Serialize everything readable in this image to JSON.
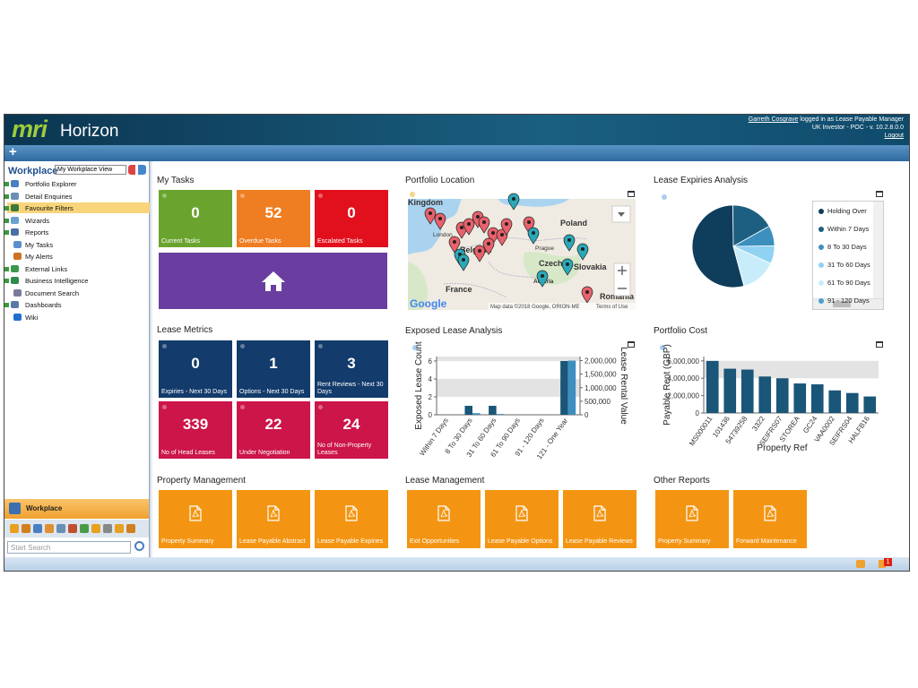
{
  "header": {
    "logo": "mri",
    "brand": "Horizon",
    "user": "Garreth Cosgrave",
    "role_text": "logged in as Lease Payable Manager",
    "environment": "UK Investor - POC - v. 10.2.8.0.0",
    "logout": "Logout"
  },
  "toolbar": {
    "add_button": "+"
  },
  "sidebar": {
    "title": "Workplace",
    "view": "My Workplace View",
    "items": [
      "Portfolio Explorer",
      "Detail Enquiries",
      "Favourite Filters",
      "Wizards",
      "Reports",
      "My Tasks",
      "My Alerts",
      "External Links",
      "Business Intelligence",
      "Document Search",
      "Dashboards",
      "Wiki"
    ],
    "selected": 2,
    "tab": "Workplace",
    "search_placeholder": "Start Search"
  },
  "my_tasks": {
    "title": "My Tasks",
    "tiles": [
      {
        "value": 0,
        "label": "Current Tasks",
        "color": "#6aa42f"
      },
      {
        "value": 52,
        "label": "Overdue Tasks",
        "color": "#ef7d22"
      },
      {
        "value": 0,
        "label": "Escalated Tasks",
        "color": "#e2101d"
      }
    ],
    "home_color": "#6a3ea0"
  },
  "lease_metrics": {
    "title": "Lease Metrics",
    "tiles": [
      {
        "value": 0,
        "label": "Expiries - Next 30 Days",
        "color": "#133b6b"
      },
      {
        "value": 1,
        "label": "Options - Next 30 Days",
        "color": "#133b6b"
      },
      {
        "value": 3,
        "label": "Rent Reviews - Next 30 Days",
        "color": "#133b6b"
      },
      {
        "value": 339,
        "label": "No of Head Leases",
        "color": "#cc1549"
      },
      {
        "value": 22,
        "label": "Under Negotiation",
        "color": "#cc1549"
      },
      {
        "value": 24,
        "label": "No of Non-Property Leases",
        "color": "#cc1549"
      }
    ]
  },
  "portfolio_location": {
    "title": "Portfolio Location",
    "labels": [
      "Kingdom",
      "London",
      "Poland",
      "Belgium",
      "Prague",
      "Czechia",
      "Slovakia",
      "Austria",
      "France",
      "Romania"
    ],
    "attribution": "Map data ©2018 Google, ORION-ME",
    "terms": "Terms of Use",
    "provider": "Google"
  },
  "report_groups": [
    {
      "title": "Property Management",
      "reports": [
        "Property Summary",
        "Lease Payable Abstract",
        "Lease Payable Expiries"
      ]
    },
    {
      "title": "Lease Management",
      "reports": [
        "Exit Opportunities",
        "Lease Payable Options",
        "Lease Payable Reviews"
      ]
    },
    {
      "title": "Other Reports",
      "reports": [
        "Property Summary",
        "Forward Maintenance"
      ]
    }
  ],
  "report_color": "#f39512",
  "status_bar": {
    "alert_count": 1
  },
  "chart_data": [
    {
      "type": "pie",
      "title": "Lease Expiries Analysis",
      "categories": [
        "Holding Over",
        "Within 7 Days",
        "8 To 30 Days",
        "31 To 60 Days",
        "61 To 90 Days",
        "91 - 120 Days"
      ],
      "values": [
        54,
        17,
        8,
        7,
        14,
        0
      ],
      "colors": [
        "#0f3d5c",
        "#1d5f80",
        "#3d8fbd",
        "#8fd2f2",
        "#c9ecfb",
        "#4a9fcf"
      ]
    },
    {
      "type": "bar",
      "title": "Exposed Lease Analysis",
      "categories": [
        "Within 7 Days",
        "8 To 30 Days",
        "31 To 60 Days",
        "61 To 90 Days",
        "91 - 120 Days",
        "121 - One Year"
      ],
      "ylabel": "Exposed Lease Count",
      "y2label": "Lease Rental Value",
      "series": [
        {
          "color": "#1a5677",
          "values": [
            0,
            1,
            1,
            0,
            0,
            6
          ]
        },
        {
          "color": "#3e8fbf",
          "values": [
            0,
            60000,
            30000,
            0,
            0,
            2000000
          ],
          "axis": "y2"
        }
      ],
      "ylim": [
        0,
        6.5
      ],
      "yticks": [
        0,
        2,
        4,
        6
      ],
      "y2lim": [
        0,
        2150000
      ],
      "y2ticks": [
        0,
        {
          "value": 500000,
          "label": "500,000"
        },
        {
          "value": 1000000,
          "label": "1,000,000"
        },
        {
          "value": 1500000,
          "label": "1,500,000"
        },
        {
          "value": 2000000,
          "label": "2,000,000"
        }
      ]
    },
    {
      "type": "bar",
      "title": "Portfolio Cost",
      "categories": [
        "MS000011",
        "101436",
        "54739258",
        "3322",
        "SEIFRS07",
        "STOREA",
        "GC24",
        "VAA0002",
        "SEIFRS04",
        "HALFB16"
      ],
      "values": [
        6000000,
        5100000,
        5000000,
        4200000,
        4000000,
        3400000,
        3300000,
        2600000,
        2300000,
        1900000
      ],
      "color": "#1a5677",
      "xlabel": "Property Ref",
      "ylabel": "Payable Rent (GBP)",
      "ylim": [
        0,
        6500000
      ],
      "yticks": [
        0,
        {
          "value": 2000000,
          "label": "2,000,000"
        },
        {
          "value": 4000000,
          "label": "4,000,000"
        },
        {
          "value": 6000000,
          "label": "6,000,000"
        }
      ]
    }
  ]
}
